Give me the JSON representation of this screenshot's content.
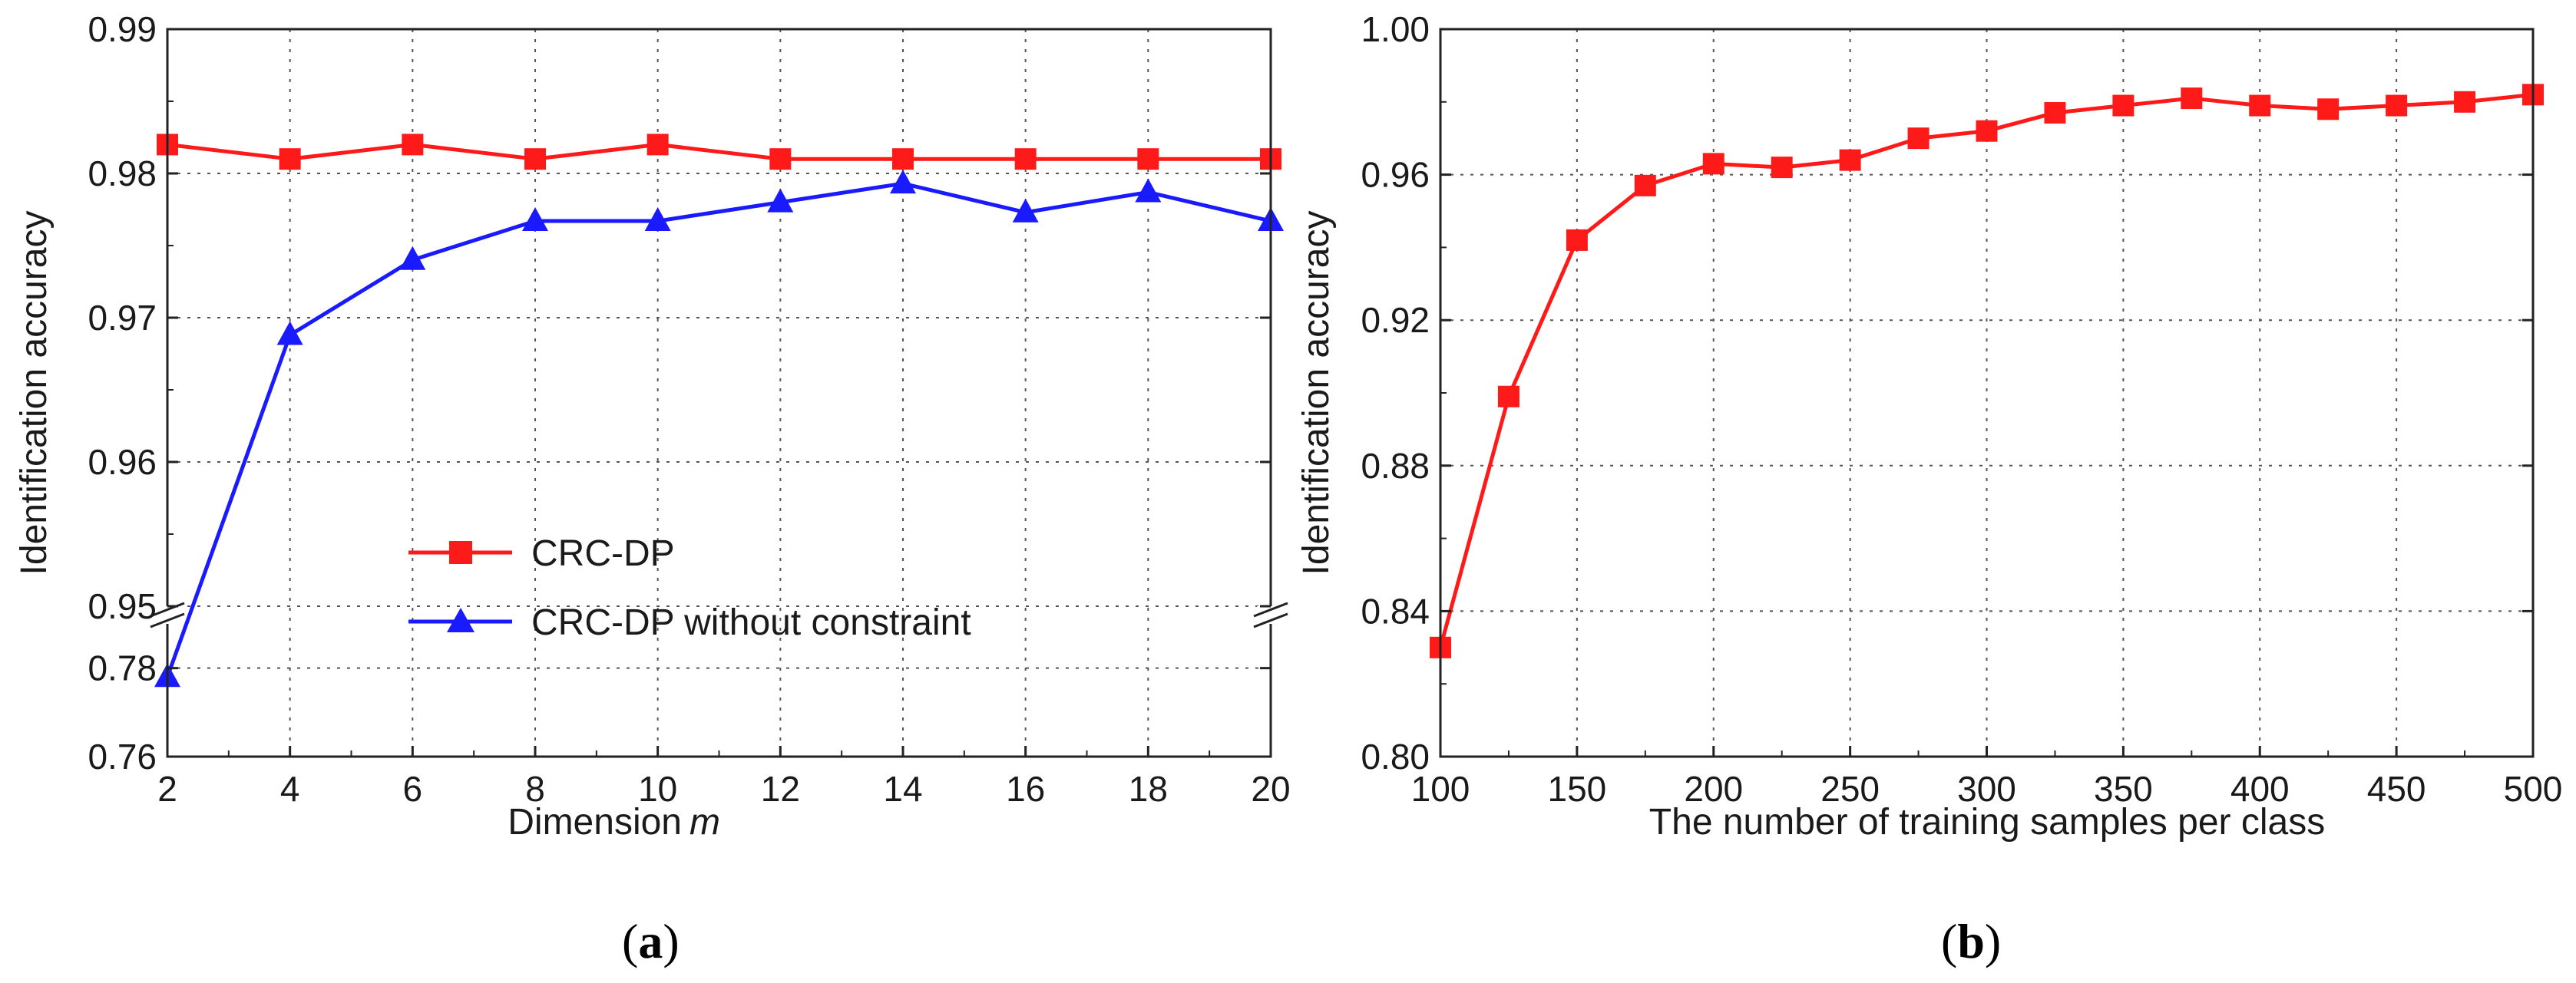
{
  "chart_data": [
    {
      "type": "line",
      "panel_label": "(a)",
      "panel_letter": "a",
      "xlabel": "Dimension",
      "xlabel_var": "m",
      "ylabel": "Identification accuracy",
      "x": [
        2,
        4,
        6,
        8,
        10,
        12,
        14,
        16,
        18,
        20
      ],
      "xticks": [
        "2",
        "4",
        "6",
        "8",
        "10",
        "12",
        "14",
        "16",
        "18",
        "20"
      ],
      "xlim": [
        2,
        20
      ],
      "broken_axis": true,
      "ylim_lower": [
        0.76,
        0.79
      ],
      "yticks_lower": [
        "0.76",
        "0.78"
      ],
      "ylim_upper": [
        0.95,
        0.99
      ],
      "yticks_upper": [
        "0.95",
        "0.96",
        "0.97",
        "0.98",
        "0.99"
      ],
      "grid": true,
      "legend": "bottom-center",
      "series": [
        {
          "name": "CRC-DP",
          "color": "#ff1a1a",
          "marker": "square",
          "values": [
            0.982,
            0.981,
            0.982,
            0.981,
            0.982,
            0.981,
            0.981,
            0.981,
            0.981,
            0.981
          ]
        },
        {
          "name": "CRC-DP without constraint",
          "color": "#1a1aff",
          "marker": "triangle",
          "values": [
            0.778,
            0.9688,
            0.974,
            0.9767,
            0.9767,
            0.978,
            0.9793,
            0.9773,
            0.9787,
            0.9767
          ]
        }
      ]
    },
    {
      "type": "line",
      "panel_label": "(b)",
      "panel_letter": "b",
      "xlabel": "The number of training samples per class",
      "ylabel": "Identification accuracy",
      "x": [
        100,
        125,
        150,
        175,
        200,
        225,
        250,
        275,
        300,
        325,
        350,
        375,
        400,
        425,
        450,
        475,
        500
      ],
      "xticks": [
        "100",
        "150",
        "200",
        "250",
        "300",
        "350",
        "400",
        "450",
        "500"
      ],
      "xlim": [
        100,
        500
      ],
      "ylim": [
        0.8,
        1.0
      ],
      "yticks": [
        "0.80",
        "0.84",
        "0.88",
        "0.92",
        "0.96",
        "1.00"
      ],
      "grid": true,
      "series": [
        {
          "color": "#ff1a1a",
          "marker": "square",
          "values": [
            0.83,
            0.899,
            0.942,
            0.957,
            0.963,
            0.962,
            0.964,
            0.97,
            0.972,
            0.977,
            0.979,
            0.981,
            0.979,
            0.978,
            0.979,
            0.98,
            0.982
          ]
        }
      ]
    }
  ]
}
